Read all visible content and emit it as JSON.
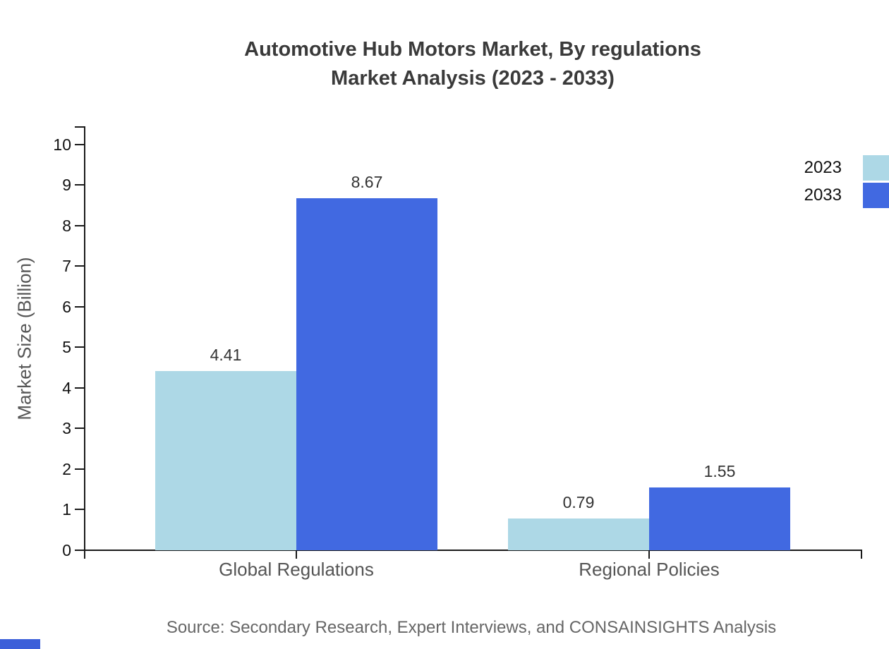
{
  "title": {
    "line1": "Automotive Hub Motors Market, By regulations",
    "line2": "Market Analysis (2023 - 2033)"
  },
  "source": "Source: Secondary Research, Expert Interviews, and CONSAINSIGHTS Analysis",
  "colors": {
    "series_2023": "#ADD8E6",
    "series_2033": "#4169E1",
    "axis": "#1a1a1a",
    "title_text": "#3a3a3a",
    "axis_label_text": "#555555",
    "tick_label_text": "#111111",
    "value_label_text": "#333333",
    "source_text": "#666666",
    "brand_mark": "#3B5FD9"
  },
  "chart_data": {
    "type": "bar",
    "title": "Automotive Hub Motors Market, By regulations Market Analysis (2023 - 2033)",
    "categories": [
      "Global Regulations",
      "Regional Policies"
    ],
    "series": [
      {
        "name": "2023",
        "color": "#ADD8E6",
        "values": [
          4.41,
          0.79
        ]
      },
      {
        "name": "2033",
        "color": "#4169E1",
        "values": [
          8.67,
          1.55
        ]
      }
    ],
    "xlabel": "",
    "ylabel": "Market Size (Billion)",
    "ylim": [
      0,
      10
    ],
    "yticks": [
      0,
      1,
      2,
      3,
      4,
      5,
      6,
      7,
      8,
      9,
      10
    ],
    "grid": false,
    "legend_position": "top-right",
    "value_labels_shown": true,
    "value_label_decimals": 2
  }
}
